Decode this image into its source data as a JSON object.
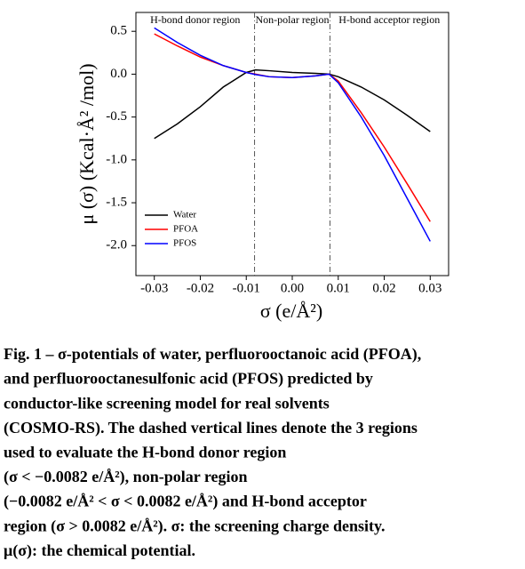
{
  "chart_data": {
    "type": "line",
    "xlabel": "σ (e/Å²)",
    "ylabel": "μ (σ) (Kcal·Å² /mol)",
    "regions": [
      "H-bond donor region",
      "Non-polar region",
      "H-bond acceptor region"
    ],
    "region_boundaries": [
      -0.0082,
      0.0082
    ],
    "x": [
      -0.03,
      -0.025,
      -0.02,
      -0.015,
      -0.01,
      -0.008,
      -0.005,
      0,
      0.005,
      0.008,
      0.01,
      0.015,
      0.02,
      0.025,
      0.03
    ],
    "series": [
      {
        "name": "Water",
        "color": "#000000",
        "values": [
          -0.75,
          -0.58,
          -0.38,
          -0.15,
          0.02,
          0.05,
          0.04,
          0.02,
          0.01,
          0.0,
          -0.03,
          -0.15,
          -0.3,
          -0.48,
          -0.67
        ]
      },
      {
        "name": "PFOA",
        "color": "#ff0000",
        "values": [
          0.47,
          0.33,
          0.2,
          0.1,
          0.02,
          0.0,
          -0.03,
          -0.04,
          -0.02,
          0.0,
          -0.08,
          -0.45,
          -0.85,
          -1.28,
          -1.72
        ]
      },
      {
        "name": "PFOS",
        "color": "#0000ff",
        "values": [
          0.54,
          0.37,
          0.22,
          0.1,
          0.02,
          -0.005,
          -0.03,
          -0.04,
          -0.02,
          0.0,
          -0.1,
          -0.5,
          -0.95,
          -1.45,
          -1.95
        ]
      }
    ],
    "xlim": [
      -0.034,
      0.034
    ],
    "ylim": [
      -2.35,
      0.72
    ],
    "xticks": [
      -0.03,
      -0.02,
      -0.01,
      {
        "value": 0,
        "label": "0.00"
      },
      0.01,
      0.02,
      0.03
    ],
    "yticks": [
      0.5,
      {
        "value": 0,
        "label": "0.0"
      },
      -0.5,
      {
        "value": -1,
        "label": "-1.0"
      },
      -1.5,
      {
        "value": -2,
        "label": "-2.0"
      }
    ],
    "legend": "lower left",
    "grid": false
  },
  "caption": {
    "lines": [
      "Fig. 1 – σ-potentials of water, perfluorooctanoic acid (PFOA),",
      "and perfluorooctanesulfonic acid (PFOS) predicted by",
      "conductor-like screening model for real solvents",
      "(COSMO-RS). The dashed vertical lines denote the 3 regions",
      "used to evaluate the H-bond donor region",
      "(σ < −0.0082 e/Å²), non-polar region",
      "(−0.0082 e/Å² < σ < 0.0082 e/Å²) and H-bond acceptor",
      "region (σ > 0.0082 e/Å²). σ: the screening charge density.",
      "μ(σ): the chemical potential."
    ]
  }
}
